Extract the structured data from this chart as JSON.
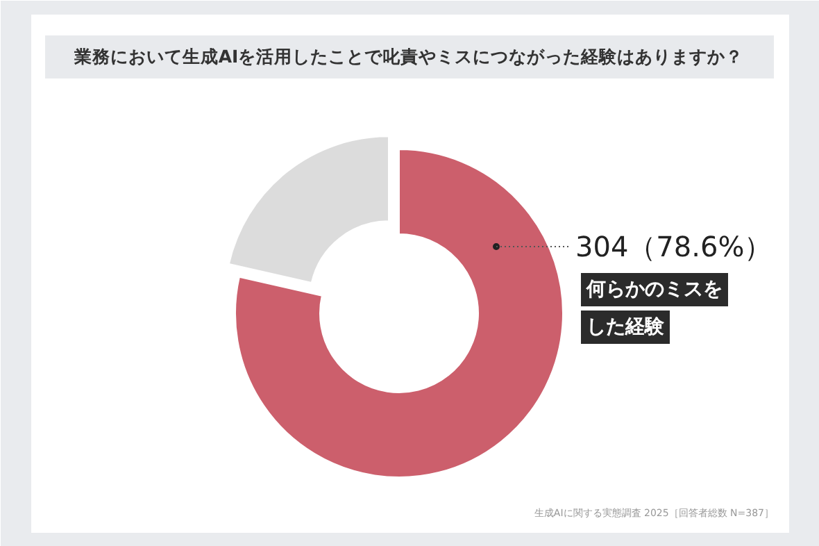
{
  "chart_data": {
    "type": "donut",
    "title": "業務において生成AIを活用したことで叱責やミスにつながった経験はありますか？",
    "categories": [
      "何らかのミスをした経験",
      null
    ],
    "values": [
      304,
      83
    ],
    "colors": [
      "#cc5f6c",
      "#dcdcdc"
    ],
    "value_labels": [
      "304（78.6%）",
      null
    ],
    "annotations": [
      "生成AIに関する実態調査 2025［回答者総数 N=387］"
    ]
  }
}
